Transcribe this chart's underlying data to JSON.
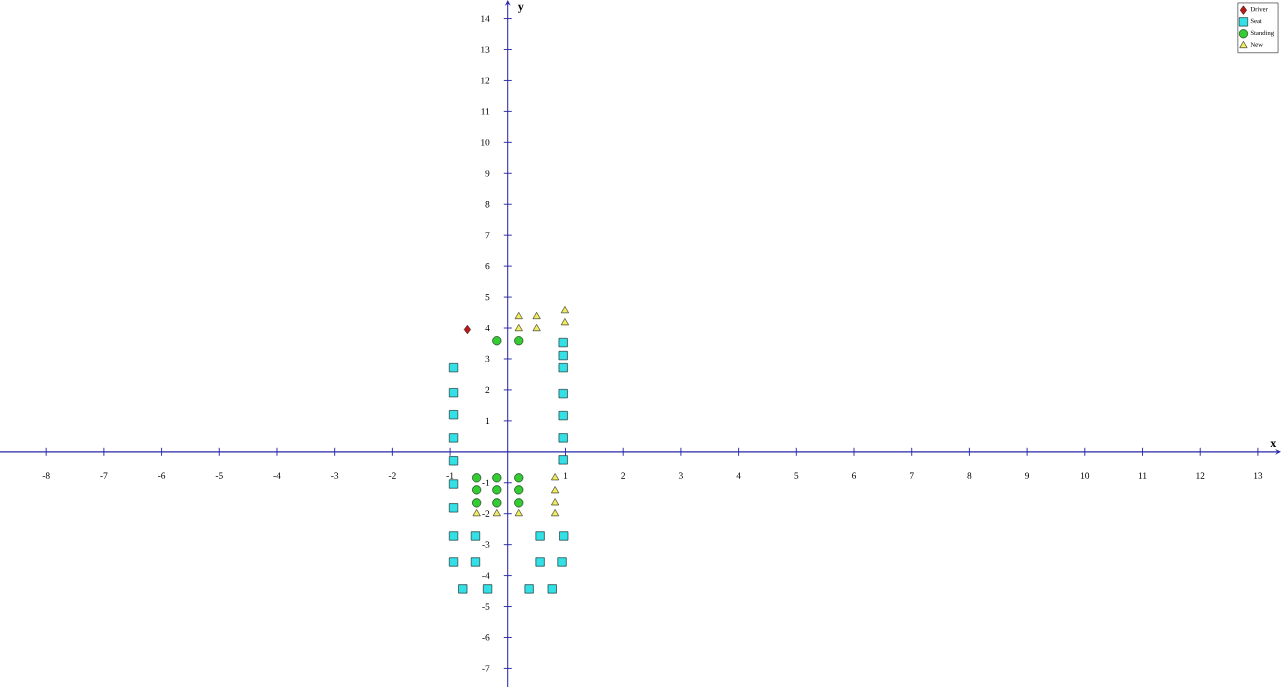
{
  "chart_data": {
    "type": "scatter",
    "xlabel": "x",
    "ylabel": "y",
    "xlim": [
      -8.8,
      13.4
    ],
    "ylim": [
      -7.6,
      14.6
    ],
    "xticks": [
      -8,
      -7,
      -6,
      -5,
      -4,
      -3,
      -2,
      -1,
      1,
      2,
      3,
      4,
      5,
      6,
      7,
      8,
      9,
      10,
      11,
      12,
      13
    ],
    "yticks": [
      -7,
      -6,
      -5,
      -4,
      -3,
      -2,
      -1,
      1,
      2,
      3,
      4,
      5,
      6,
      7,
      8,
      9,
      10,
      11,
      12,
      13,
      14
    ],
    "legend": "top right",
    "series": [
      {
        "name": "Driver",
        "color": "#c01818",
        "marker": "diamond",
        "x": [
          -0.7
        ],
        "values": [
          3.95
        ]
      },
      {
        "name": "Seat",
        "color": "#33e0e6",
        "marker": "square",
        "x": [
          -0.94,
          -0.94,
          -0.94,
          -0.94,
          -0.94,
          -0.94,
          -0.94,
          -0.94,
          -0.94,
          0.96,
          0.96,
          0.96,
          0.96,
          0.96,
          0.96,
          0.96,
          -0.56,
          -0.56,
          0.56,
          0.56,
          0.97,
          0.94,
          -0.78,
          -0.35,
          0.37,
          0.77
        ],
        "values": [
          2.72,
          1.91,
          1.2,
          0.45,
          -0.29,
          -1.04,
          -1.81,
          -2.72,
          -3.56,
          3.53,
          3.11,
          2.72,
          1.88,
          1.17,
          0.45,
          -0.26,
          -2.72,
          -3.56,
          -2.72,
          -3.56,
          -2.72,
          -3.56,
          -4.43,
          -4.43,
          -4.43,
          -4.43
        ]
      },
      {
        "name": "Standing",
        "color": "#33cc33",
        "marker": "circle",
        "x": [
          -0.19,
          0.19,
          -0.54,
          -0.19,
          0.19,
          -0.54,
          -0.19,
          0.19,
          -0.54,
          -0.19,
          0.19
        ],
        "values": [
          3.59,
          3.59,
          -0.84,
          -0.84,
          -0.84,
          -1.23,
          -1.23,
          -1.23,
          -1.65,
          -1.65,
          -1.65
        ]
      },
      {
        "name": "New",
        "color": "#f0ee60",
        "marker": "triangle",
        "x": [
          0.19,
          0.19,
          0.5,
          0.5,
          0.99,
          0.99,
          -0.54,
          -0.19,
          0.19,
          0.82,
          0.82,
          0.82,
          0.82
        ],
        "values": [
          4.37,
          3.98,
          4.37,
          3.98,
          4.56,
          4.17,
          -2.0,
          -2.0,
          -2.0,
          -0.84,
          -1.26,
          -1.65,
          -2.0
        ]
      }
    ]
  }
}
